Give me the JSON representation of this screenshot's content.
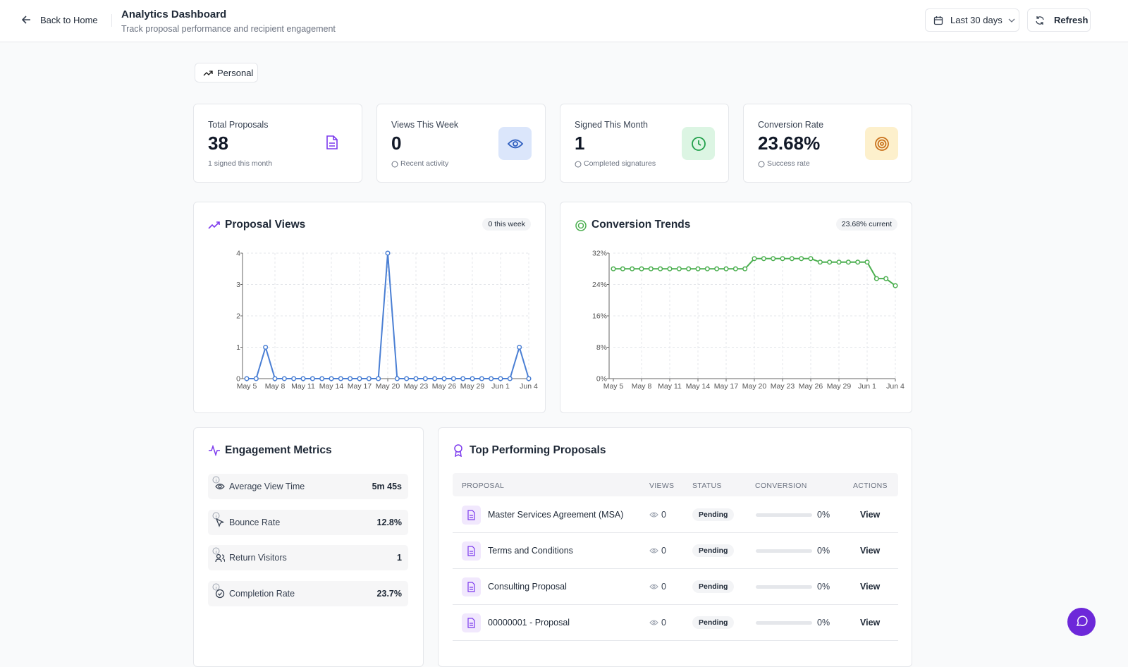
{
  "header": {
    "back": "Back to Home",
    "title": "Analytics Dashboard",
    "subtitle": "Track proposal performance and recipient engagement",
    "range": "Last 30 days",
    "refresh": "Refresh"
  },
  "filter": "Personal",
  "stats": [
    {
      "label": "Total Proposals",
      "value": "38",
      "note": "1 signed this month"
    },
    {
      "label": "Views This Week",
      "value": "0",
      "note": "Recent activity"
    },
    {
      "label": "Signed This Month",
      "value": "1",
      "note": "Completed signatures"
    },
    {
      "label": "Conversion Rate",
      "value": "23.68%",
      "note": "Success rate"
    }
  ],
  "chart_data": [
    {
      "type": "line",
      "title": "Proposal Views",
      "badge": "0 this week",
      "color": "#4a7fd4",
      "categories": [
        "May 5",
        null,
        null,
        "May 8",
        null,
        null,
        "May 11",
        null,
        null,
        "May 14",
        null,
        null,
        "May 17",
        null,
        null,
        "May 20",
        null,
        null,
        "May 23",
        null,
        null,
        "May 26",
        null,
        null,
        "May 29",
        null,
        null,
        "Jun 1",
        null,
        null,
        "Jun 4"
      ],
      "values": [
        0,
        0,
        1,
        0,
        0,
        0,
        0,
        0,
        0,
        0,
        0,
        0,
        0,
        0,
        0,
        4,
        0,
        0,
        0,
        0,
        0,
        0,
        0,
        0,
        0,
        0,
        0,
        0,
        0,
        1,
        0
      ],
      "ylim": [
        0,
        4
      ],
      "yticks": [
        0,
        1,
        2,
        3,
        4
      ],
      "grid": true
    },
    {
      "type": "line",
      "title": "Conversion Trends",
      "badge": "23.68% current",
      "color": "#4caf50",
      "categories": [
        "May 5",
        null,
        null,
        "May 8",
        null,
        null,
        "May 11",
        null,
        null,
        "May 14",
        null,
        null,
        "May 17",
        null,
        null,
        "May 20",
        null,
        null,
        "May 23",
        null,
        null,
        "May 26",
        null,
        null,
        "May 29",
        null,
        null,
        "Jun 1",
        null,
        null,
        "Jun 4"
      ],
      "values": [
        28,
        28,
        28,
        28,
        28,
        28,
        28,
        28,
        28,
        28,
        28,
        28,
        28,
        28,
        28,
        30.6,
        30.6,
        30.6,
        30.6,
        30.6,
        30.6,
        30.6,
        29.7,
        29.7,
        29.7,
        29.7,
        29.7,
        29.7,
        25.5,
        25.5,
        23.7
      ],
      "ylim": [
        0,
        32
      ],
      "yticks": [
        {
          "value": 0,
          "label": "0%"
        },
        {
          "value": 8,
          "label": "8%"
        },
        {
          "value": 16,
          "label": "16%"
        },
        {
          "value": 24,
          "label": "24%"
        },
        {
          "value": 32,
          "label": "32%"
        }
      ],
      "grid": true
    }
  ],
  "engagement": {
    "title": "Engagement Metrics",
    "items": [
      {
        "label": "Average View Time",
        "value": "5m 45s"
      },
      {
        "label": "Bounce Rate",
        "value": "12.8%"
      },
      {
        "label": "Return Visitors",
        "value": "1"
      },
      {
        "label": "Completion Rate",
        "value": "23.7%"
      }
    ]
  },
  "table": {
    "title": "Top Performing Proposals",
    "columns": [
      "PROPOSAL",
      "VIEWS",
      "STATUS",
      "CONVERSION",
      "ACTIONS"
    ],
    "rows": [
      [
        "Master Services Agreement (MSA)",
        "0",
        "Pending",
        "0%",
        "View"
      ],
      [
        "Terms and Conditions",
        "0",
        "Pending",
        "0%",
        "View"
      ],
      [
        "Consulting Proposal",
        "0",
        "Pending",
        "0%",
        "View"
      ],
      [
        "00000001 - Proposal",
        "0",
        "Pending",
        "0%",
        "View"
      ]
    ]
  }
}
